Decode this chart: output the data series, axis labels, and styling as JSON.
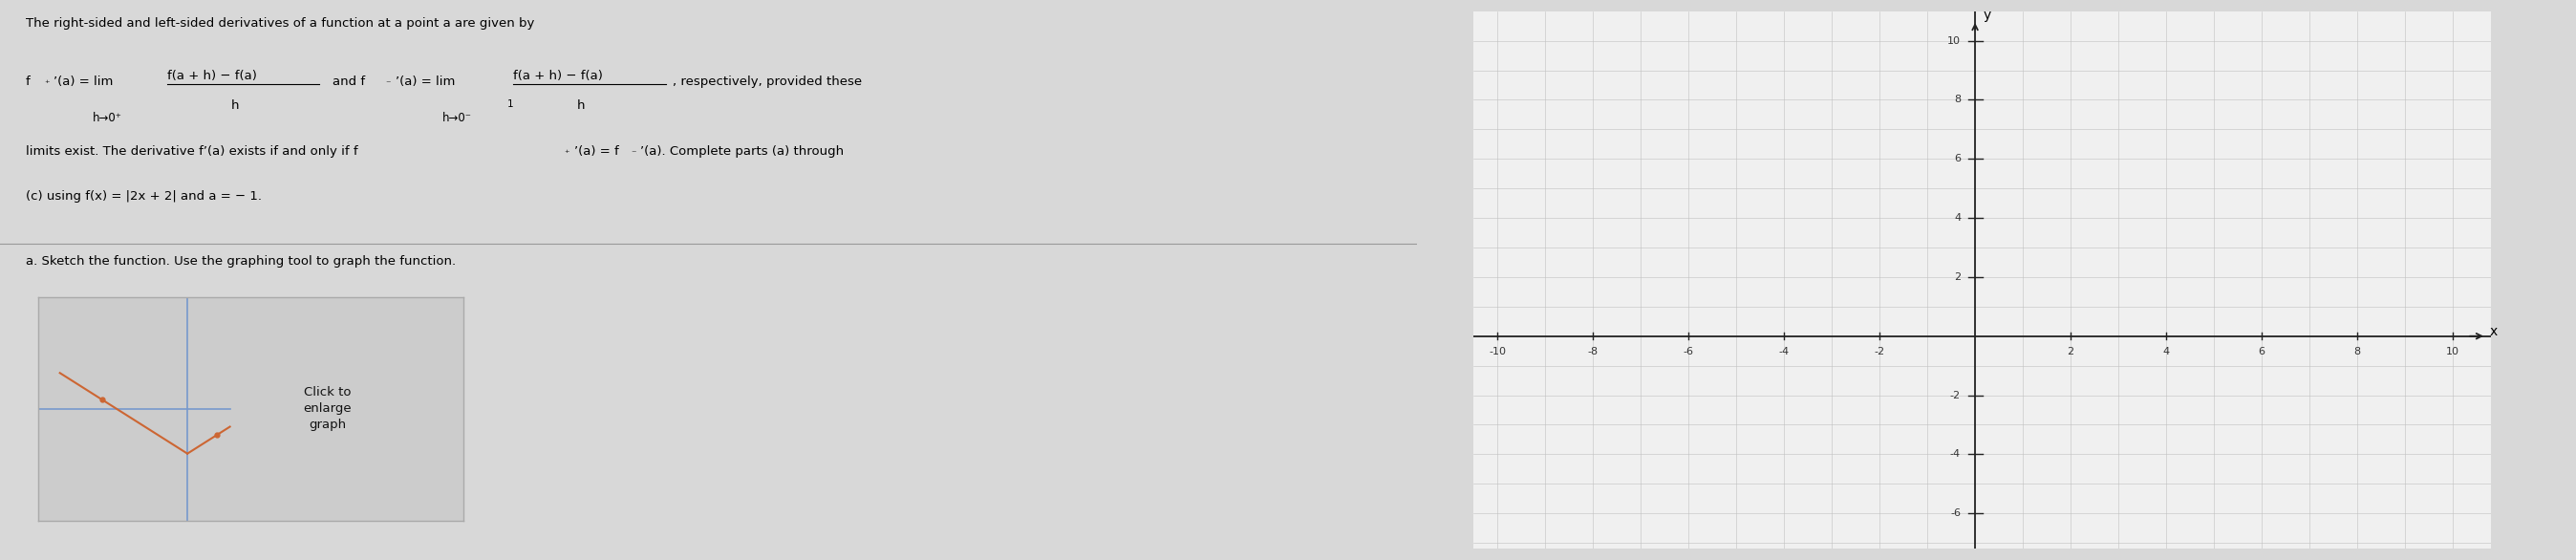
{
  "background_color": "#d8d8d8",
  "text_panel_bg": "#d8d8d8",
  "grid_bg_color": "#f0f0f0",
  "grid_color": "#c0c0c0",
  "axis_color": "#222222",
  "tick_label_fontsize": 8,
  "axis_label_fontsize": 10,
  "grid_xlim": [
    -10.5,
    10.8
  ],
  "grid_ylim": [
    -7.2,
    11.0
  ],
  "grid_xticks": [
    -10,
    -8,
    -6,
    -4,
    -2,
    2,
    4,
    6,
    8,
    10
  ],
  "grid_yticks": [
    -6,
    -4,
    -2,
    2,
    4,
    6,
    8,
    10
  ],
  "btn_bg": "#cccccc",
  "btn_border": "#aaaaaa",
  "line_color_v": "#7799cc",
  "line_color_fn": "#cc6633"
}
